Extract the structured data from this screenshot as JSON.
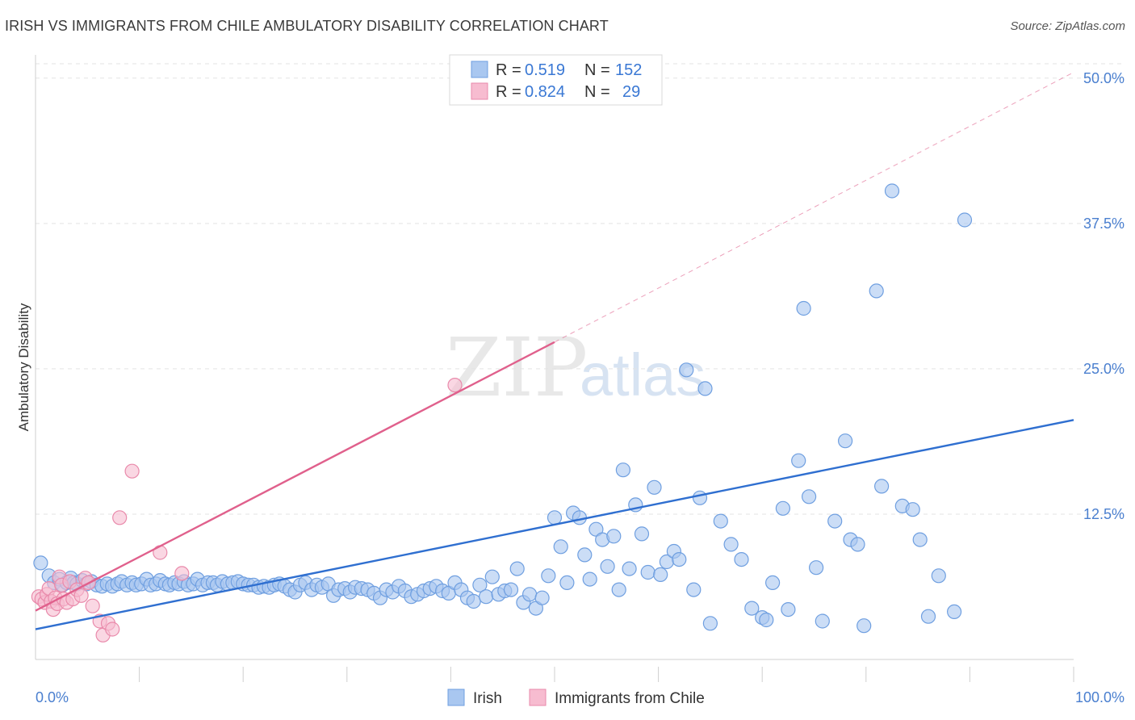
{
  "title": "IRISH VS IMMIGRANTS FROM CHILE AMBULATORY DISABILITY CORRELATION CHART",
  "source": "Source: ZipAtlas.com",
  "watermark": {
    "zip": "ZIP",
    "atlas": "atlas"
  },
  "legend": {
    "rows": [
      {
        "r_label": "R = ",
        "r_value": "0.519",
        "n_label": "N = ",
        "n_value": "152",
        "color": "#a9c7f0",
        "stroke": "#6f9fe0"
      },
      {
        "r_label": "R = ",
        "r_value": "0.824",
        "n_label": "N = ",
        "n_value": "29",
        "color": "#f7bcd0",
        "stroke": "#e98aab"
      }
    ]
  },
  "bottom_legend": [
    {
      "label": "Irish",
      "color": "#a9c7f0",
      "stroke": "#6f9fe0"
    },
    {
      "label": "Immigrants from Chile",
      "color": "#f7bcd0",
      "stroke": "#e98aab"
    }
  ],
  "chart_data": {
    "type": "scatter",
    "title": "IRISH VS IMMIGRANTS FROM CHILE AMBULATORY DISABILITY CORRELATION CHART",
    "xlabel": "",
    "ylabel": "Ambulatory Disability",
    "xlim": [
      0,
      100
    ],
    "ylim": [
      0,
      52
    ],
    "x_tick_labels": [
      "0.0%",
      "100.0%"
    ],
    "y_ticks": [
      12.5,
      25.0,
      37.5,
      50.0
    ],
    "y_tick_labels": [
      "12.5%",
      "25.0%",
      "37.5%",
      "50.0%"
    ],
    "grid": "horizontal dashed",
    "legend_position": "top-center",
    "series": [
      {
        "name": "Irish",
        "color": "#a9c7f0",
        "stroke": "#6f9fe0",
        "trend_color": "#2f6fd0",
        "trend": {
          "x": [
            0,
            100
          ],
          "y": [
            2.6,
            20.6
          ]
        },
        "points": [
          [
            0.5,
            8.3
          ],
          [
            1.3,
            7.2
          ],
          [
            1.8,
            6.6
          ],
          [
            2.3,
            6.9
          ],
          [
            2.6,
            6.4
          ],
          [
            3.0,
            6.6
          ],
          [
            3.4,
            7.0
          ],
          [
            3.7,
            6.6
          ],
          [
            4.0,
            6.5
          ],
          [
            4.5,
            6.8
          ],
          [
            4.9,
            6.5
          ],
          [
            5.4,
            6.7
          ],
          [
            5.9,
            6.4
          ],
          [
            6.4,
            6.3
          ],
          [
            6.9,
            6.5
          ],
          [
            7.4,
            6.3
          ],
          [
            7.9,
            6.5
          ],
          [
            8.3,
            6.7
          ],
          [
            8.8,
            6.4
          ],
          [
            9.3,
            6.6
          ],
          [
            9.7,
            6.4
          ],
          [
            10.2,
            6.5
          ],
          [
            10.7,
            6.9
          ],
          [
            11.1,
            6.4
          ],
          [
            11.6,
            6.5
          ],
          [
            12.0,
            6.8
          ],
          [
            12.5,
            6.5
          ],
          [
            12.9,
            6.4
          ],
          [
            13.4,
            6.6
          ],
          [
            13.8,
            6.5
          ],
          [
            14.3,
            6.7
          ],
          [
            14.7,
            6.4
          ],
          [
            15.2,
            6.5
          ],
          [
            15.6,
            6.9
          ],
          [
            16.1,
            6.4
          ],
          [
            16.6,
            6.6
          ],
          [
            17.1,
            6.6
          ],
          [
            17.5,
            6.4
          ],
          [
            18.0,
            6.7
          ],
          [
            18.5,
            6.5
          ],
          [
            19.0,
            6.6
          ],
          [
            19.5,
            6.7
          ],
          [
            20.0,
            6.5
          ],
          [
            20.5,
            6.4
          ],
          [
            21.0,
            6.4
          ],
          [
            21.5,
            6.2
          ],
          [
            22.0,
            6.3
          ],
          [
            22.5,
            6.2
          ],
          [
            23.0,
            6.4
          ],
          [
            23.5,
            6.5
          ],
          [
            24.0,
            6.3
          ],
          [
            24.5,
            6.0
          ],
          [
            25.0,
            5.8
          ],
          [
            25.5,
            6.4
          ],
          [
            26.0,
            6.6
          ],
          [
            26.6,
            6.0
          ],
          [
            27.1,
            6.4
          ],
          [
            27.6,
            6.2
          ],
          [
            28.2,
            6.5
          ],
          [
            28.7,
            5.5
          ],
          [
            29.2,
            6.0
          ],
          [
            29.8,
            6.1
          ],
          [
            30.3,
            5.8
          ],
          [
            30.8,
            6.2
          ],
          [
            31.4,
            6.1
          ],
          [
            32.0,
            6.0
          ],
          [
            32.6,
            5.7
          ],
          [
            33.2,
            5.3
          ],
          [
            33.8,
            6.0
          ],
          [
            34.4,
            5.8
          ],
          [
            35.0,
            6.3
          ],
          [
            35.6,
            5.9
          ],
          [
            36.2,
            5.4
          ],
          [
            36.8,
            5.6
          ],
          [
            37.4,
            5.9
          ],
          [
            38.0,
            6.1
          ],
          [
            38.6,
            6.3
          ],
          [
            39.2,
            5.9
          ],
          [
            39.8,
            5.7
          ],
          [
            40.4,
            6.6
          ],
          [
            41.0,
            6.0
          ],
          [
            41.6,
            5.3
          ],
          [
            42.2,
            5.0
          ],
          [
            42.8,
            6.4
          ],
          [
            43.4,
            5.4
          ],
          [
            44.0,
            7.1
          ],
          [
            44.6,
            5.6
          ],
          [
            45.2,
            5.9
          ],
          [
            45.8,
            6.0
          ],
          [
            46.4,
            7.8
          ],
          [
            47.0,
            4.9
          ],
          [
            47.6,
            5.6
          ],
          [
            48.2,
            4.4
          ],
          [
            48.8,
            5.3
          ],
          [
            49.4,
            7.2
          ],
          [
            50.0,
            12.2
          ],
          [
            50.6,
            9.7
          ],
          [
            51.2,
            6.6
          ],
          [
            51.8,
            12.6
          ],
          [
            52.4,
            12.2
          ],
          [
            52.9,
            9.0
          ],
          [
            53.4,
            6.9
          ],
          [
            54.0,
            11.2
          ],
          [
            54.6,
            10.3
          ],
          [
            55.1,
            8.0
          ],
          [
            55.7,
            10.6
          ],
          [
            56.2,
            6.0
          ],
          [
            56.6,
            16.3
          ],
          [
            57.2,
            7.8
          ],
          [
            57.8,
            13.3
          ],
          [
            58.4,
            10.8
          ],
          [
            59.0,
            7.5
          ],
          [
            59.6,
            14.8
          ],
          [
            60.2,
            7.3
          ],
          [
            60.8,
            8.4
          ],
          [
            61.5,
            9.3
          ],
          [
            62.0,
            8.6
          ],
          [
            62.7,
            24.9
          ],
          [
            63.4,
            6.0
          ],
          [
            64.0,
            13.9
          ],
          [
            64.5,
            23.3
          ],
          [
            65.0,
            3.1
          ],
          [
            66.0,
            11.9
          ],
          [
            67.0,
            9.9
          ],
          [
            68.0,
            8.6
          ],
          [
            69.0,
            4.4
          ],
          [
            70.0,
            3.6
          ],
          [
            70.4,
            3.4
          ],
          [
            71.0,
            6.6
          ],
          [
            72.0,
            13.0
          ],
          [
            72.5,
            4.3
          ],
          [
            73.5,
            17.1
          ],
          [
            74.0,
            30.2
          ],
          [
            74.5,
            14.0
          ],
          [
            75.2,
            7.9
          ],
          [
            75.8,
            3.3
          ],
          [
            77.0,
            11.9
          ],
          [
            78.0,
            18.8
          ],
          [
            78.5,
            10.3
          ],
          [
            79.2,
            9.9
          ],
          [
            79.8,
            2.9
          ],
          [
            81.0,
            31.7
          ],
          [
            81.5,
            14.9
          ],
          [
            82.5,
            40.3
          ],
          [
            83.5,
            13.2
          ],
          [
            84.5,
            12.9
          ],
          [
            85.2,
            10.3
          ],
          [
            86.0,
            3.7
          ],
          [
            87.0,
            7.2
          ],
          [
            88.5,
            4.1
          ],
          [
            89.5,
            37.8
          ]
        ]
      },
      {
        "name": "Immigrants from Chile",
        "color": "#f7bcd0",
        "stroke": "#e98aab",
        "trend_color": "#e0608c",
        "trend": {
          "x": [
            0,
            50
          ],
          "y": [
            4.2,
            27.3
          ]
        },
        "trend_dashed": {
          "x": [
            50,
            100
          ],
          "y": [
            27.3,
            50.5
          ]
        },
        "points": [
          [
            0.3,
            5.4
          ],
          [
            0.6,
            5.2
          ],
          [
            0.9,
            4.9
          ],
          [
            1.1,
            5.6
          ],
          [
            1.3,
            6.1
          ],
          [
            1.5,
            5.0
          ],
          [
            1.7,
            4.3
          ],
          [
            1.9,
            5.3
          ],
          [
            2.1,
            4.8
          ],
          [
            2.3,
            7.1
          ],
          [
            2.5,
            6.4
          ],
          [
            2.7,
            5.2
          ],
          [
            3.0,
            4.9
          ],
          [
            3.3,
            6.7
          ],
          [
            3.6,
            5.2
          ],
          [
            4.0,
            6.0
          ],
          [
            4.4,
            5.5
          ],
          [
            4.8,
            7.0
          ],
          [
            5.1,
            6.6
          ],
          [
            5.5,
            4.6
          ],
          [
            6.2,
            3.3
          ],
          [
            6.5,
            2.1
          ],
          [
            7.0,
            3.1
          ],
          [
            7.4,
            2.6
          ],
          [
            8.1,
            12.2
          ],
          [
            9.3,
            16.2
          ],
          [
            12.0,
            9.2
          ],
          [
            14.1,
            7.4
          ],
          [
            40.4,
            23.6
          ]
        ]
      }
    ]
  }
}
